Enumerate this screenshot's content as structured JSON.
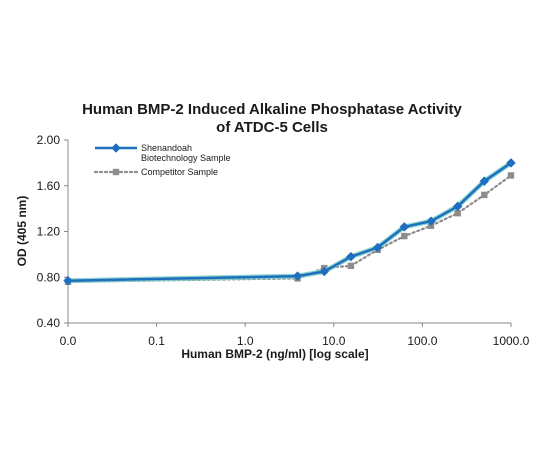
{
  "chart_data": {
    "type": "line",
    "title_lines": [
      "Human BMP-2 Induced Alkaline Phosphatase Activity",
      "of ATDC-5 Cells"
    ],
    "xlabel": "Human BMP-2 (ng/ml) [log scale]",
    "ylabel": "OD (405 nm)",
    "x_scale": "log",
    "x_ticks": [
      0.01,
      0.1,
      1,
      10,
      100,
      1000
    ],
    "x_tick_labels": [
      "0.0",
      "0.1",
      "1.0",
      "10.0",
      "100.0",
      "1000.0"
    ],
    "ylim": [
      0.4,
      2.0
    ],
    "y_ticks": [
      0.4,
      0.8,
      1.2,
      1.6,
      2.0
    ],
    "y_tick_labels": [
      "0.40",
      "0.80",
      "1.20",
      "1.60",
      "2.00"
    ],
    "grid": false,
    "legend_position": "top-left",
    "series": [
      {
        "name": "Shenandoah Biotechnology Sample",
        "name_lines": [
          "Shenandoah",
          "Biotechnology Sample"
        ],
        "color": "#1f6fbf",
        "marker": "diamond",
        "line_style": "solid",
        "x": [
          0.01,
          3.9,
          7.8,
          15.6,
          31.25,
          62.5,
          125,
          250,
          500,
          1000
        ],
        "y": [
          0.77,
          0.81,
          0.85,
          0.98,
          1.06,
          1.24,
          1.29,
          1.42,
          1.64,
          1.8
        ]
      },
      {
        "name": "Competitor Sample",
        "name_lines": [
          "Competitor Sample"
        ],
        "color": "#8c8c8c",
        "marker": "square",
        "line_style": "dotted",
        "x": [
          0.01,
          3.9,
          7.8,
          15.6,
          31.25,
          62.5,
          125,
          250,
          500,
          1000
        ],
        "y": [
          0.76,
          0.79,
          0.88,
          0.9,
          1.04,
          1.16,
          1.25,
          1.36,
          1.52,
          1.69
        ]
      }
    ]
  }
}
